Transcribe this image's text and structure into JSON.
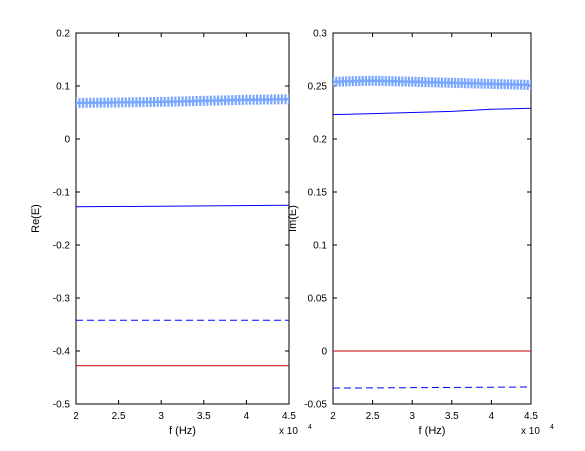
{
  "colors": {
    "blue": "#0000ff",
    "light_blue": "#7aa8ff",
    "red": "#cc0000",
    "black": "#000000"
  },
  "chart_data": [
    {
      "type": "line",
      "xlabel": "f (Hz)",
      "ylabel": "Re(E)",
      "x_multiplier": "x 10",
      "x_multiplier_exp": "4",
      "xlim": [
        2,
        4.5
      ],
      "ylim": [
        -0.5,
        0.2
      ],
      "xticks": [
        2,
        2.5,
        3,
        3.5,
        4,
        4.5
      ],
      "xtick_labels": [
        "2",
        "2.5",
        "3",
        "3.5",
        "4",
        "4.5"
      ],
      "yticks": [
        -0.5,
        -0.4,
        -0.3,
        -0.2,
        -0.1,
        0,
        0.1,
        0.2
      ],
      "ytick_labels": [
        "-0.5",
        "-0.4",
        "-0.3",
        "-0.2",
        "-0.1",
        "0",
        "0.1",
        "0.2"
      ],
      "grid": false,
      "series": [
        {
          "style": "marker-plus",
          "color": "#000000",
          "x": [
            2,
            2.5,
            3,
            3.5,
            4,
            4.5
          ],
          "y": [
            0.068,
            0.069,
            0.07,
            0.072,
            0.074,
            0.075
          ]
        },
        {
          "style": "marker-plus",
          "color": "#7aa8ff",
          "x": [
            2,
            2.5,
            3,
            3.5,
            4,
            4.5
          ],
          "y": [
            0.068,
            0.069,
            0.07,
            0.072,
            0.074,
            0.075
          ]
        },
        {
          "style": "solid",
          "color": "#0000ff",
          "x": [
            2,
            4.5
          ],
          "y": [
            -0.128,
            -0.125
          ]
        },
        {
          "style": "dashed",
          "color": "#0000ff",
          "x": [
            2,
            4.5
          ],
          "y": [
            -0.342,
            -0.342
          ]
        },
        {
          "style": "solid",
          "color": "#cc0000",
          "x": [
            2,
            4.5
          ],
          "y": [
            -0.428,
            -0.428
          ]
        }
      ]
    },
    {
      "type": "line",
      "xlabel": "f (Hz)",
      "ylabel": "Im(E)",
      "x_multiplier": "x 10",
      "x_multiplier_exp": "4",
      "xlim": [
        2,
        4.5
      ],
      "ylim": [
        -0.05,
        0.3
      ],
      "xticks": [
        2,
        2.5,
        3,
        3.5,
        4,
        4.5
      ],
      "xtick_labels": [
        "2",
        "2.5",
        "3",
        "3.5",
        "4",
        "4.5"
      ],
      "yticks": [
        -0.05,
        0,
        0.05,
        0.1,
        0.15,
        0.2,
        0.25,
        0.3
      ],
      "ytick_labels": [
        "-0.05",
        "0",
        "0.05",
        "0.1",
        "0.15",
        "0.2",
        "0.25",
        "0.3"
      ],
      "grid": false,
      "series": [
        {
          "style": "marker-plus",
          "color": "#000000",
          "x": [
            2,
            2.5,
            3,
            3.5,
            4,
            4.5
          ],
          "y": [
            0.254,
            0.255,
            0.254,
            0.253,
            0.252,
            0.251
          ]
        },
        {
          "style": "marker-plus",
          "color": "#7aa8ff",
          "x": [
            2,
            2.5,
            3,
            3.5,
            4,
            4.5
          ],
          "y": [
            0.254,
            0.255,
            0.254,
            0.253,
            0.252,
            0.251
          ]
        },
        {
          "style": "solid",
          "color": "#0000ff",
          "x": [
            2,
            2.5,
            3,
            3.5,
            4,
            4.5
          ],
          "y": [
            0.223,
            0.224,
            0.225,
            0.226,
            0.228,
            0.229
          ]
        },
        {
          "style": "solid",
          "color": "#cc0000",
          "x": [
            2,
            4.5
          ],
          "y": [
            0.0,
            0.0
          ]
        },
        {
          "style": "dashed",
          "color": "#0000ff",
          "x": [
            2,
            4.5
          ],
          "y": [
            -0.035,
            -0.034
          ]
        }
      ]
    }
  ]
}
